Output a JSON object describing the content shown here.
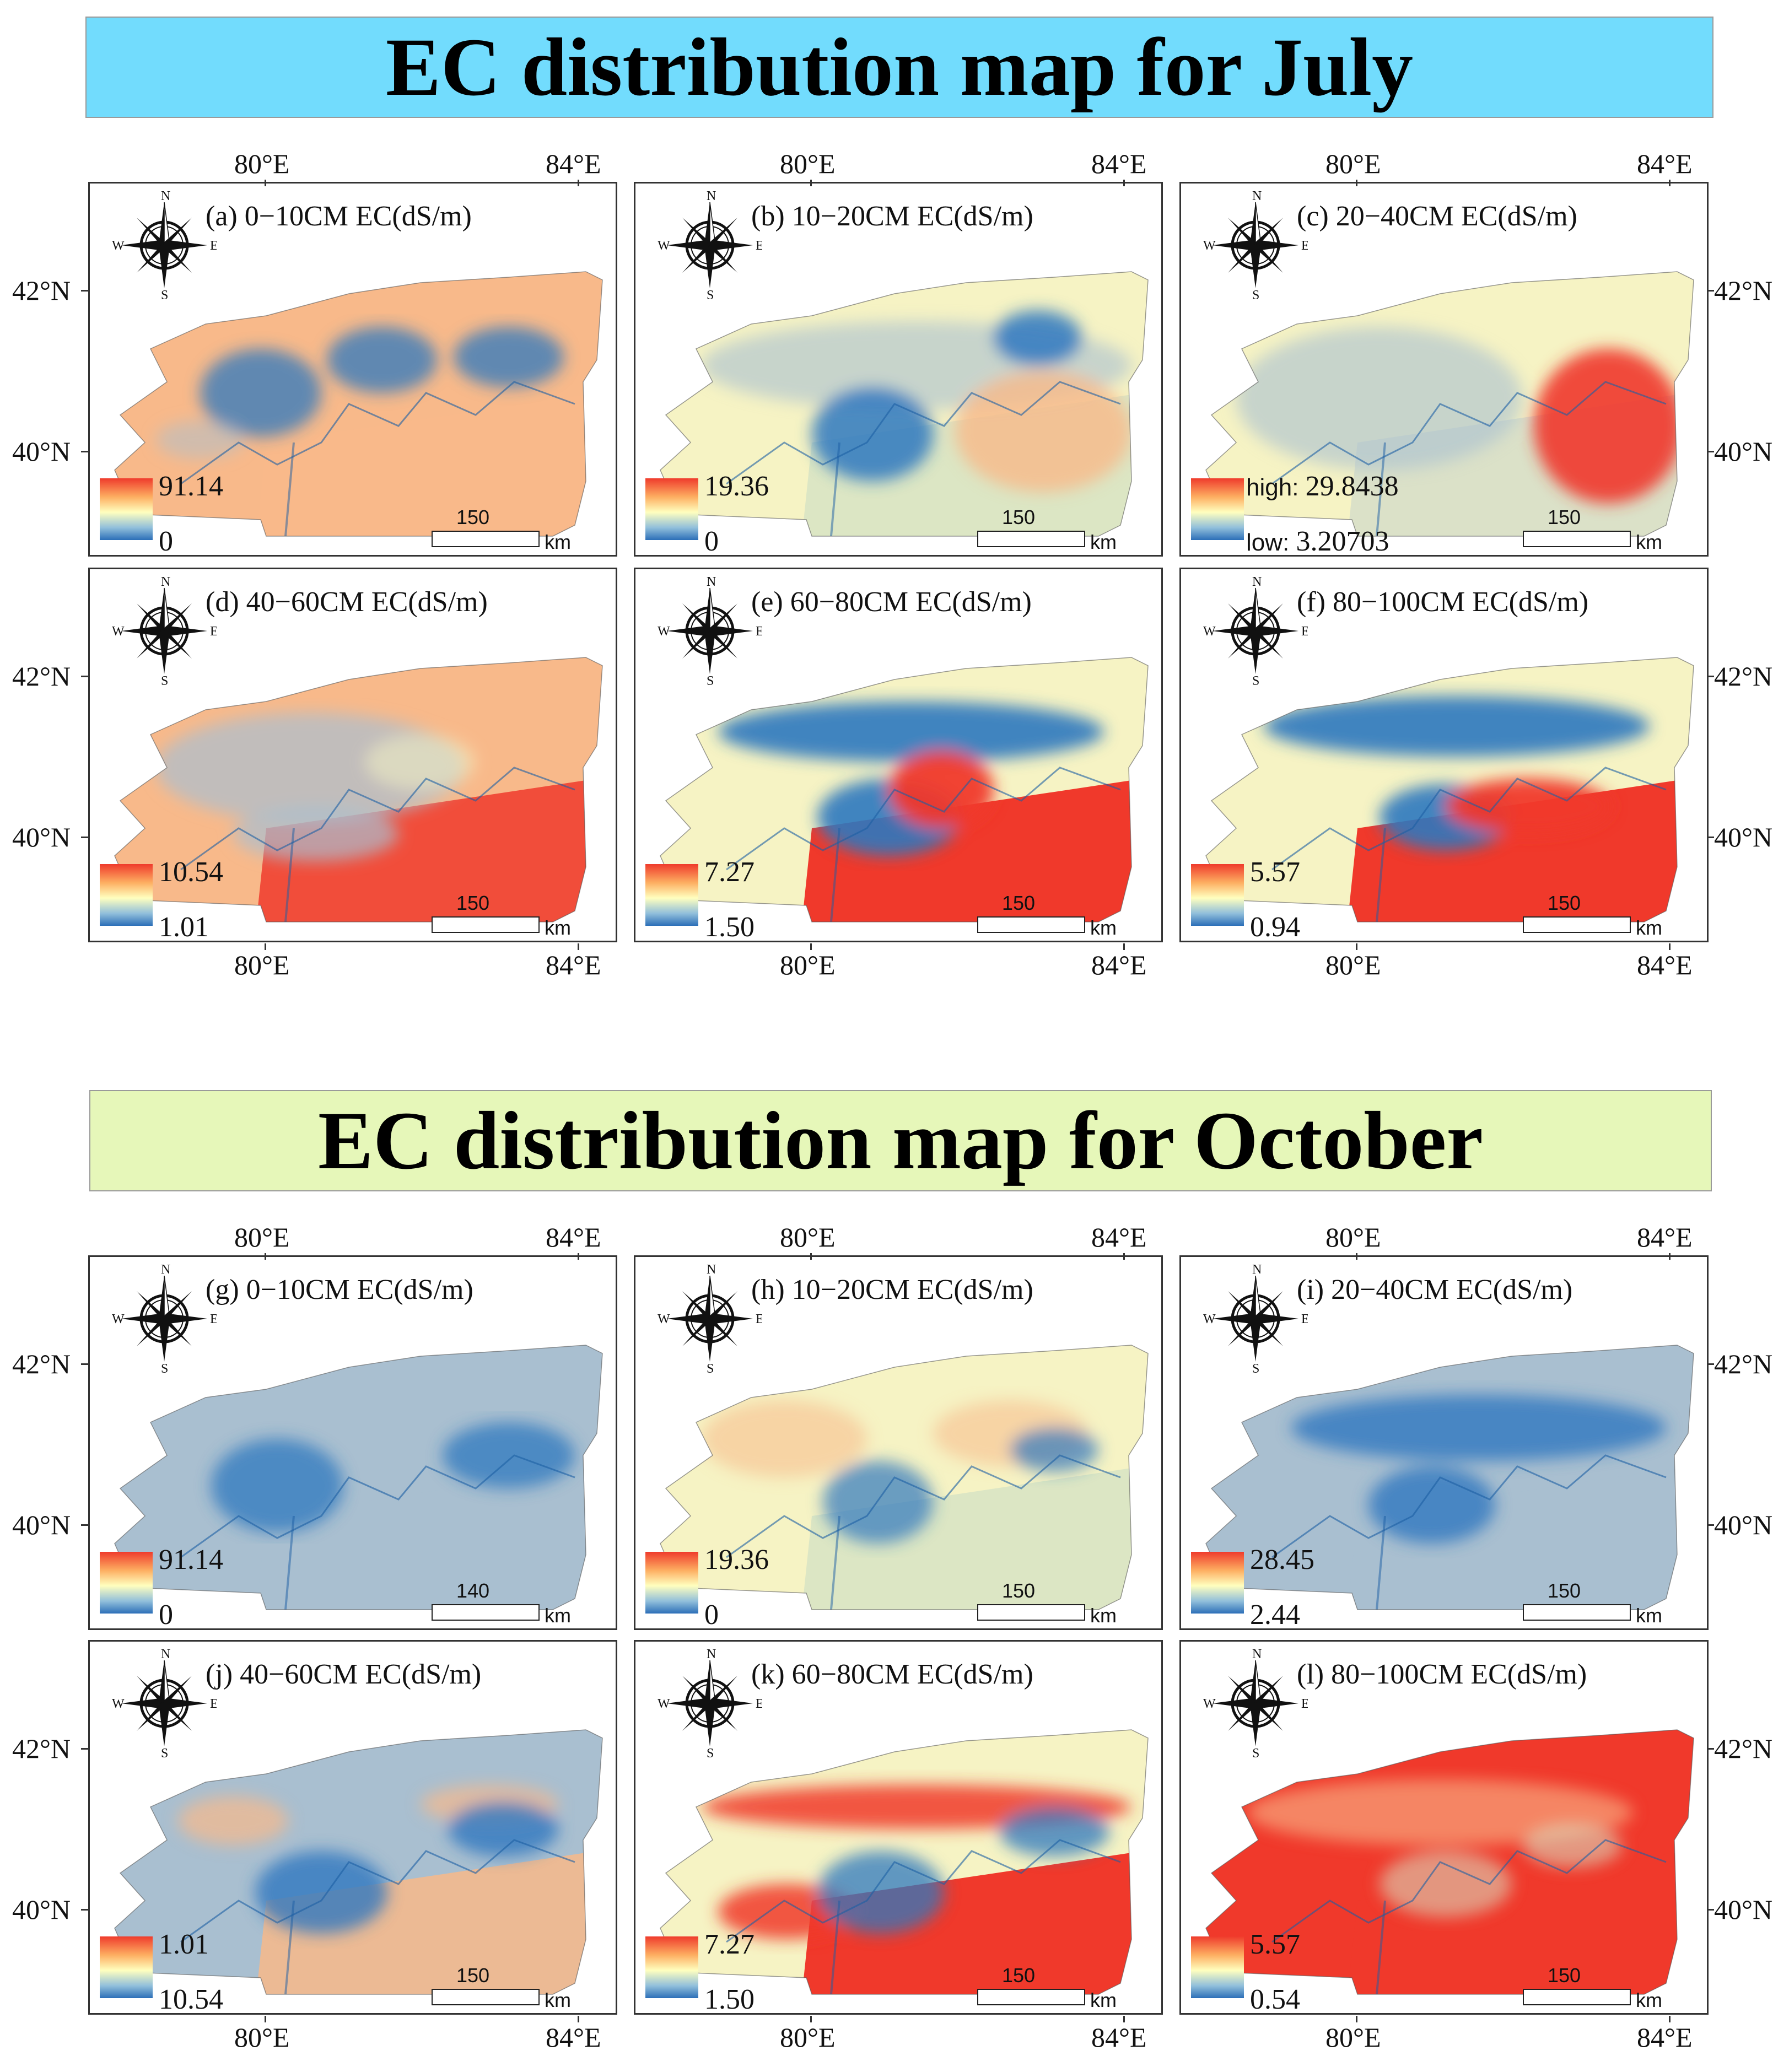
{
  "banners": {
    "july": "EC distribution map for July",
    "october": "EC distribution map for October"
  },
  "axes": {
    "lon_left": "80°E",
    "lon_right": "84°E",
    "lat_top": "42°N",
    "lat_bottom": "40°N"
  },
  "compass": {
    "n": "N",
    "s": "S",
    "e": "E",
    "w": "W"
  },
  "scale_unit": "km",
  "colors": {
    "red": "#f0392b",
    "orange": "#f8b98a",
    "cream": "#f6f3c4",
    "lightgreen": "#d9e4c4",
    "grayblue": "#a9bfd0",
    "blue": "#2f78bf"
  },
  "panels": [
    {
      "id": "a",
      "title": "(a) 0−10CM EC(dS/m)",
      "legend_max": "91.14",
      "legend_min": "0",
      "scale_num": "150",
      "scheme": "orange_blue"
    },
    {
      "id": "b",
      "title": "(b) 10−20CM EC(dS/m)",
      "legend_max": "19.36",
      "legend_min": "0",
      "scale_num": "150",
      "scheme": "cream_blue"
    },
    {
      "id": "c",
      "title": "(c) 20−40CM EC(dS/m)",
      "legend_max_prefix": "high: ",
      "legend_max": "29.8438",
      "legend_min_prefix": "low: ",
      "legend_min": "3.20703",
      "scale_num": "150",
      "scheme": "gray_red"
    },
    {
      "id": "d",
      "title": "(d) 40−60CM EC(dS/m)",
      "legend_max": "10.54",
      "legend_min": "1.01",
      "scale_num": "150",
      "scheme": "mixed_red"
    },
    {
      "id": "e",
      "title": "(e) 60−80CM EC(dS/m)",
      "legend_max": "7.27",
      "legend_min": "1.50",
      "scale_num": "150",
      "scheme": "blue_red"
    },
    {
      "id": "f",
      "title": "(f) 80−100CM EC(dS/m)",
      "legend_max": "5.57",
      "legend_min": "0.94",
      "scale_num": "150",
      "scheme": "blue_red2"
    },
    {
      "id": "g",
      "title": "(g) 0−10CM EC(dS/m)",
      "legend_max": "91.14",
      "legend_min": "0",
      "scale_num": "140",
      "scheme": "blue_only"
    },
    {
      "id": "h",
      "title": "(h) 10−20CM EC(dS/m)",
      "legend_max": "19.36",
      "legend_min": "0",
      "scale_num": "150",
      "scheme": "cream_orange"
    },
    {
      "id": "i",
      "title": "(i) 20−40CM EC(dS/m)",
      "legend_max": "28.45",
      "legend_min": "2.44",
      "scale_num": "150",
      "scheme": "blue_only2"
    },
    {
      "id": "j",
      "title": "(j) 40−60CM EC(dS/m)",
      "legend_max": "1.01",
      "legend_min": "10.54",
      "scale_num": "150",
      "scheme": "orange_gray"
    },
    {
      "id": "k",
      "title": "(k) 60−80CM EC(dS/m)",
      "legend_max": "7.27",
      "legend_min": "1.50",
      "scale_num": "150",
      "scheme": "red_cream"
    },
    {
      "id": "l",
      "title": "(l) 80−100CM EC(dS/m)",
      "legend_max": "5.57",
      "legend_min": "0.54",
      "scale_num": "150",
      "scheme": "red_full"
    }
  ]
}
